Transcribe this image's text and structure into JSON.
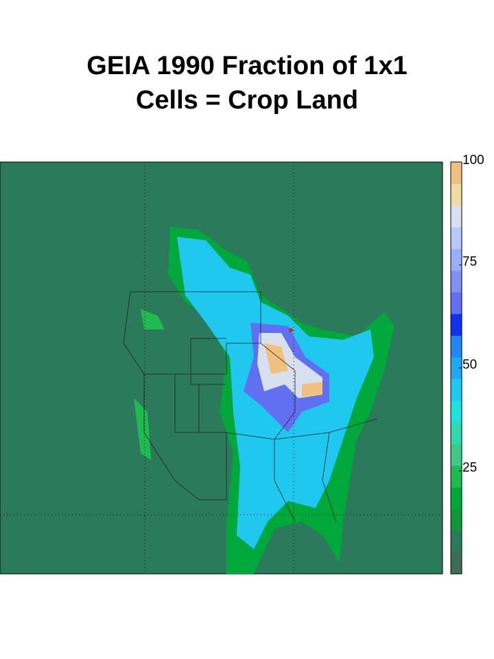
{
  "title": [
    "GEIA 1990 Fraction of 1x1",
    "Cells = Crop Land"
  ],
  "colorbar": {
    "lim": [
      0,
      100
    ],
    "ticks": [
      25,
      50,
      75,
      100
    ],
    "colors": [
      "#3f6b5a",
      "#2b7a5c",
      "#10973a",
      "#00a83c",
      "#20bb50",
      "#40c888",
      "#30d8b0",
      "#20e0e0",
      "#20c8f0",
      "#20a8f0",
      "#2088f0",
      "#1030f0",
      "#6070f0",
      "#8090f0",
      "#98b0f8",
      "#b8c8f8",
      "#d8e0f0",
      "#f0dca0",
      "#f0c080"
    ]
  }
}
